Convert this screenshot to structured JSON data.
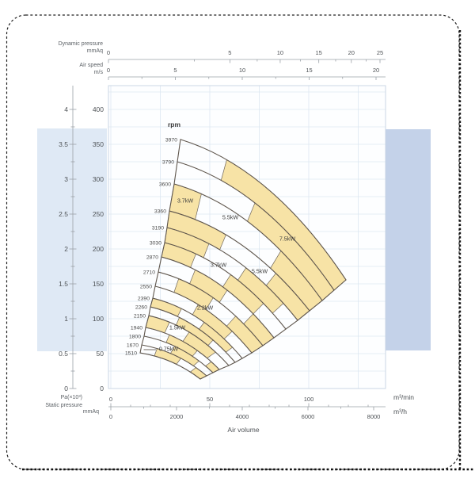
{
  "top_axes": {
    "dynamic_pressure": {
      "caption_line1": "Dynamic pressure",
      "caption_line2": "mmAq",
      "major_ticks": [
        0,
        5,
        10,
        15,
        20,
        25
      ],
      "minor_ticks": [
        2.5,
        7.5,
        12.5,
        17.5,
        22.5
      ]
    },
    "air_speed": {
      "caption_line1": "Air speed",
      "caption_line2": "m/s",
      "major_ticks": [
        0,
        5,
        10,
        15,
        20
      ],
      "minor_ticks": [
        2.5,
        7.5,
        12.5,
        17.5
      ]
    }
  },
  "left_axis": {
    "caption_line1": "Pa(×10³)",
    "caption_line2": "Static pressure",
    "caption_line3": "mmAq",
    "pa_labels": [
      "0",
      "0.5",
      "1",
      "1.5",
      "2",
      "2.5",
      "3",
      "3.5",
      "4"
    ],
    "mmaq_labels": [
      "0",
      "50",
      "100",
      "150",
      "200",
      "250",
      "300",
      "350",
      "400"
    ]
  },
  "bottom_axis": {
    "m3min_ticks": [
      0,
      50,
      100
    ],
    "m3min_unit": "m³/min",
    "m3h_ticks": [
      0,
      2000,
      4000,
      6000,
      8000
    ],
    "m3h_unit": "m³/h",
    "xlabel": "Air volume"
  },
  "chart_data": {
    "type": "area",
    "title": "Fan performance curves (static pressure vs air volume)",
    "rpm_header": "rpm",
    "xlabel": "Air volume (m³/min)",
    "ylabel": "Static pressure (mmAq)",
    "x_range_m3min": [
      0,
      140
    ],
    "y_range_mmaq": [
      0,
      434
    ],
    "rpm_curves": [
      {
        "rpm": 3970,
        "s": [
          35.2,
          357.0
        ],
        "e": [
          118.8,
          155.7
        ]
      },
      {
        "rpm": 3790,
        "s": [
          33.6,
          325.0
        ],
        "e": [
          112.8,
          140.9
        ]
      },
      {
        "rpm": 3600,
        "s": [
          32.0,
          293.2
        ],
        "e": [
          106.8,
          126.1
        ]
      },
      {
        "rpm": 3360,
        "s": [
          29.6,
          254.5
        ],
        "e": [
          100.4,
          111.4
        ]
      },
      {
        "rpm": 3190,
        "s": [
          28.4,
          230.7
        ],
        "e": [
          94.4,
          97.7
        ]
      },
      {
        "rpm": 3030,
        "s": [
          27.2,
          209.1
        ],
        "e": [
          88.4,
          85.2
        ]
      },
      {
        "rpm": 2870,
        "s": [
          25.6,
          188.6
        ],
        "e": [
          82.4,
          72.7
        ]
      },
      {
        "rpm": 2710,
        "s": [
          24.0,
          167.0
        ],
        "e": [
          76.8,
          61.4
        ]
      },
      {
        "rpm": 2550,
        "s": [
          22.4,
          146.6
        ],
        "e": [
          71.2,
          51.1
        ]
      },
      {
        "rpm": 2390,
        "s": [
          21.2,
          129.5
        ],
        "e": [
          66.4,
          43.2
        ]
      },
      {
        "rpm": 2260,
        "s": [
          20.0,
          117.0
        ],
        "e": [
          62.8,
          37.5
        ]
      },
      {
        "rpm": 2150,
        "s": [
          19.2,
          104.5
        ],
        "e": [
          59.6,
          33.0
        ]
      },
      {
        "rpm": 1940,
        "s": [
          17.6,
          87.5
        ],
        "e": [
          54.8,
          27.3
        ]
      },
      {
        "rpm": 1800,
        "s": [
          16.8,
          75.0
        ],
        "e": [
          51.6,
          22.7
        ]
      },
      {
        "rpm": 1670,
        "s": [
          15.6,
          62.5
        ],
        "e": [
          48.4,
          18.2
        ]
      },
      {
        "rpm": 1510,
        "s": [
          14.8,
          51.1
        ],
        "e": [
          45.2,
          13.6
        ]
      }
    ],
    "power_labels": [
      {
        "text": "3.7kW",
        "q": 37.6,
        "p": 269.3
      },
      {
        "text": "5.5kW",
        "q": 60.4,
        "p": 245.5
      },
      {
        "text": "7.5kW",
        "q": 89.2,
        "p": 214.8
      },
      {
        "text": "3.7kW",
        "q": 54.4,
        "p": 177.3
      },
      {
        "text": "5.5kW",
        "q": 75.2,
        "p": 168.2
      },
      {
        "text": "2.2kW",
        "q": 47.6,
        "p": 115.9
      },
      {
        "text": "1.5kW",
        "q": 33.6,
        "p": 87.5
      },
      {
        "text": "0.75kW",
        "q": 29.2,
        "p": 56.8,
        "leader_q": 16.6,
        "leader_p": 55.7
      }
    ],
    "shaded_bands": [
      {
        "band": 0,
        "from": 0.26,
        "to": 1
      },
      {
        "band": 1,
        "from": 0.47,
        "to": 1
      },
      {
        "band": 2,
        "from": 0,
        "to": 0.17
      },
      {
        "band": 2,
        "from": 0.7,
        "to": 1
      },
      {
        "band": 3,
        "from": 0,
        "to": 0.38
      },
      {
        "band": 3,
        "from": 0.74,
        "to": 1
      },
      {
        "band": 4,
        "from": 0,
        "to": 0.3
      },
      {
        "band": 4,
        "from": 0.58,
        "to": 0.88
      },
      {
        "band": 5,
        "from": 0,
        "to": 0.24
      },
      {
        "band": 5,
        "from": 0.52,
        "to": 0.8
      },
      {
        "band": 6,
        "from": 0.28,
        "to": 0.56
      },
      {
        "band": 6,
        "from": 0.8,
        "to": 1
      },
      {
        "band": 7,
        "from": 0.18,
        "to": 0.5
      },
      {
        "band": 7,
        "from": 0.72,
        "to": 1
      },
      {
        "band": 8,
        "from": 0.42,
        "to": 0.78
      },
      {
        "band": 9,
        "from": 0,
        "to": 0.3
      },
      {
        "band": 9,
        "from": 0.55,
        "to": 0.88
      },
      {
        "band": 10,
        "from": 0.32,
        "to": 0.72
      },
      {
        "band": 11,
        "from": 0,
        "to": 0.24
      },
      {
        "band": 11,
        "from": 0.48,
        "to": 0.82
      },
      {
        "band": 12,
        "from": 0.3,
        "to": 0.68
      },
      {
        "band": 12,
        "from": 0.88,
        "to": 1
      },
      {
        "band": 13,
        "from": 0.42,
        "to": 0.78
      },
      {
        "band": 14,
        "from": 0.22,
        "to": 0.58
      },
      {
        "band": 14,
        "from": 0.82,
        "to": 1
      }
    ],
    "colors": {
      "band_fill": "#f7e3a6",
      "band_stroke": "#6f665a",
      "curve": "#5f564d",
      "grid": "#dce7f2",
      "plot_border": "#c6d3e2",
      "axis": "#9aa0a6",
      "tick_text": "#4e5256",
      "left_highlight": "#dfe9f5",
      "right_highlight": "#c4d2e9",
      "frame_dash": "#1f1f1f"
    }
  }
}
